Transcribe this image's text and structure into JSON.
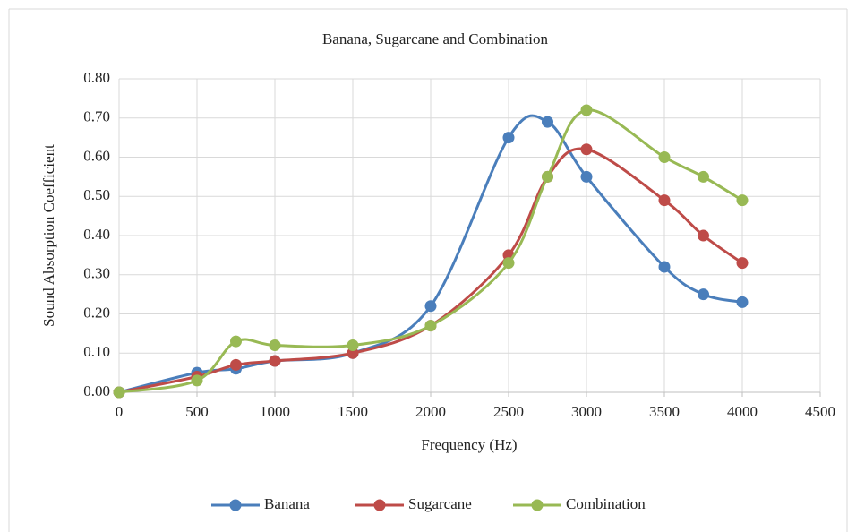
{
  "chart_data": {
    "type": "scatter-smooth",
    "title": "Banana, Sugarcane and Combination",
    "x_label": "Frequency (Hz)",
    "y_label": "Sound Absorption Coefficient",
    "x": [
      0,
      500,
      750,
      1000,
      1500,
      2000,
      2500,
      2750,
      3000,
      3500,
      3750,
      4000
    ],
    "series": [
      {
        "name": "Banana",
        "color": "#4a7ebb",
        "values": [
          0,
          0.05,
          0.06,
          0.08,
          0.1,
          0.22,
          0.65,
          0.69,
          0.55,
          0.32,
          0.25,
          0.23
        ]
      },
      {
        "name": "Sugarcane",
        "color": "#be4b48",
        "values": [
          0,
          0.04,
          0.07,
          0.08,
          0.1,
          0.17,
          0.35,
          0.55,
          0.62,
          0.49,
          0.4,
          0.33
        ]
      },
      {
        "name": "Combination",
        "color": "#98b954",
        "values": [
          0,
          0.03,
          0.13,
          0.12,
          0.12,
          0.17,
          0.33,
          0.55,
          0.72,
          0.6,
          0.55,
          0.49
        ]
      }
    ],
    "xlim": [
      0,
      4500
    ],
    "xticks": [
      0,
      500,
      1000,
      1500,
      2000,
      2500,
      3000,
      3500,
      4000,
      4500
    ],
    "ylim": [
      0,
      0.8
    ],
    "yticks": [
      {
        "value": 0,
        "label": "0.00"
      },
      {
        "value": 0.1,
        "label": "0.10"
      },
      {
        "value": 0.2,
        "label": "0.20"
      },
      {
        "value": 0.3,
        "label": "0.30"
      },
      {
        "value": 0.4,
        "label": "0.40"
      },
      {
        "value": 0.5,
        "label": "0.50"
      },
      {
        "value": 0.6,
        "label": "0.60"
      },
      {
        "value": 0.7,
        "label": "0.70"
      },
      {
        "value": 0.8,
        "label": "0.80"
      }
    ],
    "grid": true,
    "legend": "bottom"
  }
}
